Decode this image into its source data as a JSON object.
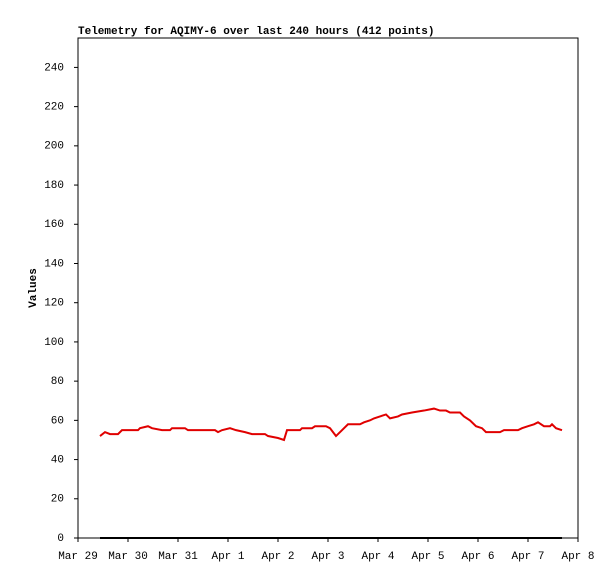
{
  "chart_data": {
    "type": "line",
    "title": "Telemetry for AQIMY-6 over last 240 hours (412 points)",
    "y_label": "Values",
    "ylim": [
      0,
      255
    ],
    "yticks": [
      0,
      20,
      40,
      60,
      80,
      100,
      120,
      140,
      160,
      180,
      200,
      220,
      240
    ],
    "xlim": [
      0,
      10
    ],
    "xticks": [
      {
        "value": 0,
        "label": "Mar 29"
      },
      {
        "value": 1,
        "label": "Mar 30"
      },
      {
        "value": 2,
        "label": "Mar 31"
      },
      {
        "value": 3,
        "label": "Apr 1"
      },
      {
        "value": 4,
        "label": "Apr 2"
      },
      {
        "value": 5,
        "label": "Apr 3"
      },
      {
        "value": 6,
        "label": "Apr 4"
      },
      {
        "value": 7,
        "label": "Apr 5"
      },
      {
        "value": 8,
        "label": "Apr 6"
      },
      {
        "value": 9,
        "label": "Apr 7"
      },
      {
        "value": 10,
        "label": "Apr 8"
      }
    ],
    "series": [
      {
        "color": "#000000",
        "x": [
          0.44,
          9.68
        ],
        "values": [
          0,
          0
        ]
      },
      {
        "color": "#e00000",
        "x": [
          0.44,
          0.54,
          0.64,
          0.8,
          0.88,
          1.2,
          1.24,
          1.4,
          1.48,
          1.68,
          1.84,
          1.88,
          2.14,
          2.2,
          2.74,
          2.8,
          2.88,
          3.04,
          3.16,
          3.34,
          3.48,
          3.74,
          3.8,
          4.0,
          4.12,
          4.18,
          4.44,
          4.48,
          4.68,
          4.74,
          4.96,
          5.04,
          5.1,
          5.16,
          5.28,
          5.4,
          5.64,
          5.72,
          5.84,
          5.92,
          6.04,
          6.16,
          6.24,
          6.4,
          6.48,
          6.68,
          6.92,
          7.12,
          7.24,
          7.36,
          7.44,
          7.64,
          7.72,
          7.84,
          7.96,
          8.08,
          8.16,
          8.44,
          8.52,
          8.8,
          8.88,
          9.0,
          9.12,
          9.2,
          9.32,
          9.44,
          9.48,
          9.56,
          9.68
        ],
        "values": [
          52,
          54,
          53,
          53,
          55,
          55,
          56,
          57,
          56,
          55,
          55,
          56,
          56,
          55,
          55,
          54,
          55,
          56,
          55,
          54,
          53,
          53,
          52,
          51,
          50,
          55,
          55,
          56,
          56,
          57,
          57,
          56,
          54,
          52,
          55,
          58,
          58,
          59,
          60,
          61,
          62,
          63,
          61,
          62,
          63,
          64,
          65,
          66,
          65,
          65,
          64,
          64,
          62,
          60,
          57,
          56,
          54,
          54,
          55,
          55,
          56,
          57,
          58,
          59,
          57,
          57,
          58,
          56,
          55
        ]
      }
    ]
  }
}
